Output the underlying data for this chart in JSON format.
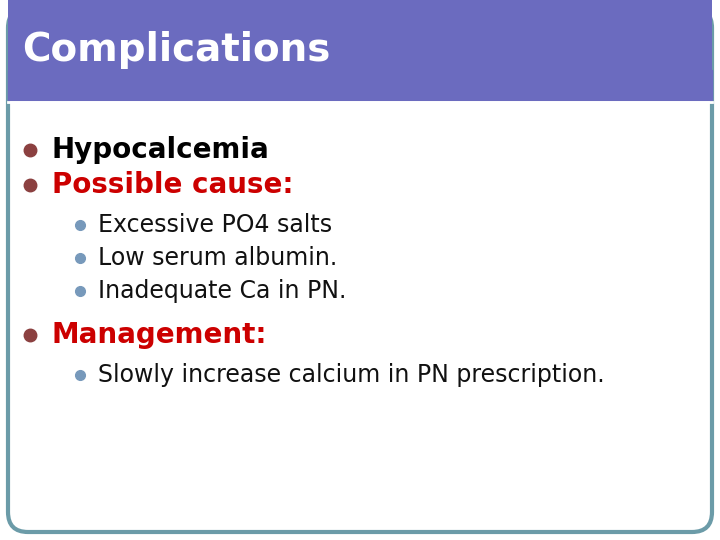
{
  "title": "Complications",
  "title_bg_color": "#6B6BBF",
  "title_text_color": "#FFFFFF",
  "slide_bg_color": "#FFFFFF",
  "border_color": "#6B9BA8",
  "bullet1_text": "Hypocalcemia",
  "bullet1_color": "#000000",
  "bullet1_bullet_color": "#8B4040",
  "bullet2_text": "Possible cause:",
  "bullet2_color": "#CC0000",
  "bullet2_bullet_color": "#8B4040",
  "sub_bullets": [
    "Excessive PO4 salts",
    "Low serum albumin.",
    "Inadequate Ca in PN."
  ],
  "sub_bullet_color": "#111111",
  "sub_bullet_dot_color": "#7799BB",
  "bullet3_text": "Management:",
  "bullet3_color": "#CC0000",
  "bullet3_bullet_color": "#8B4040",
  "sub_bullets2": [
    "Slowly increase calcium in PN prescription."
  ],
  "sub_bullet2_color": "#111111",
  "sub_bullet2_dot_color": "#7799BB",
  "fig_width": 7.2,
  "fig_height": 5.4,
  "dpi": 100
}
